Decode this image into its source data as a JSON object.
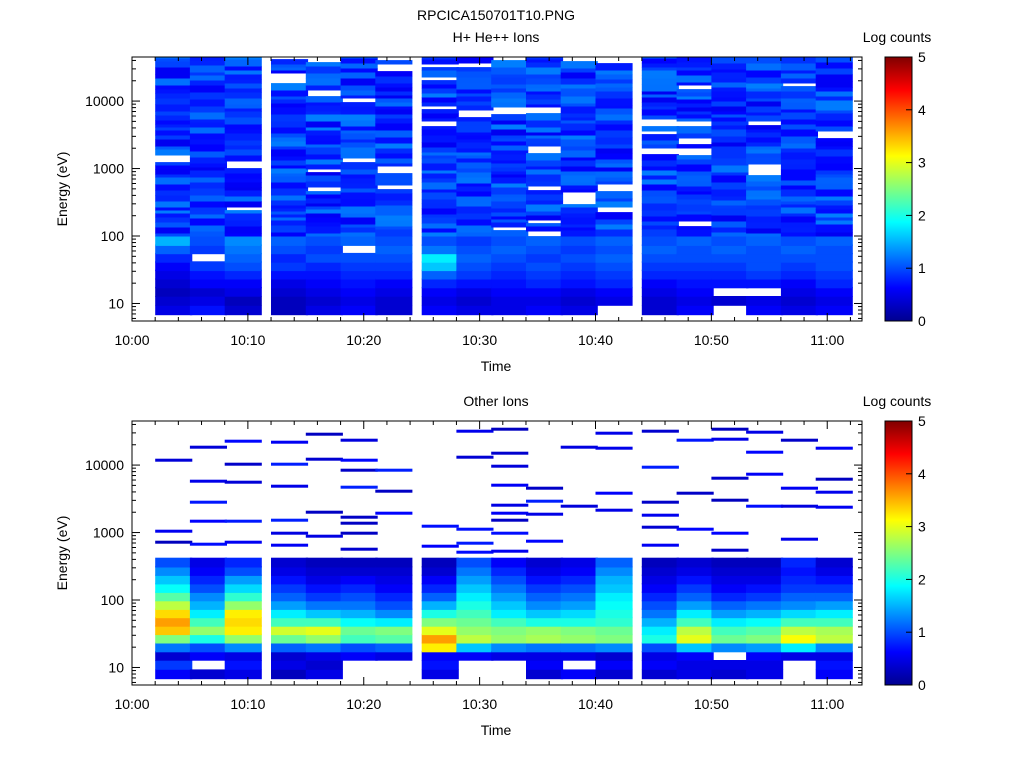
{
  "figure_title": "RPCICA150701T10.PNG",
  "chart_data": [
    {
      "type": "heatmap",
      "title": "H+ He++ Ions",
      "xlabel": "Time",
      "ylabel": "Energy (eV)",
      "y_scale": "log",
      "ylim": [
        5.5,
        45000
      ],
      "y_ticks": [
        10,
        100,
        1000,
        10000
      ],
      "y_tick_labels": [
        "10",
        "100",
        "1000",
        "10000"
      ],
      "x_tick_labels": [
        "10:00",
        "10:10",
        "10:20",
        "10:30",
        "10:40",
        "10:50",
        "11:00"
      ],
      "colorbar": {
        "label": "Log counts",
        "min": 0,
        "max": 5,
        "ticks": [
          "0",
          "1",
          "2",
          "3",
          "4",
          "5"
        ]
      },
      "time_bins_start": [
        "10:02",
        "10:05",
        "10:08",
        "10:12",
        "10:15",
        "10:18",
        "10:21",
        "10:25",
        "10:28",
        "10:31",
        "10:34",
        "10:37",
        "10:40",
        "10:44",
        "10:47",
        "10:50",
        "10:53",
        "10:56",
        "10:59"
      ],
      "energy_bins": [
        8,
        11,
        15,
        20,
        27,
        36,
        48,
        64,
        85
      ],
      "values_low_energy": [
        [
          0.5,
          0.4,
          0.3,
          0.4,
          0.5,
          0.6,
          0.8,
          1.1,
          1.5
        ],
        [
          0.7,
          0.5,
          0.4,
          0.6,
          0.7,
          0.9,
          null,
          0.9,
          1.0
        ],
        [
          0.4,
          0.3,
          0.5,
          0.6,
          0.8,
          1.0,
          1.1,
          1.2,
          1.3
        ],
        [
          0.3,
          0.3,
          0.4,
          0.5,
          0.7,
          0.9,
          0.8,
          1.0,
          1.1
        ],
        [
          0.5,
          0.4,
          0.5,
          0.6,
          0.7,
          0.8,
          1.0,
          0.9,
          1.0
        ],
        [
          0.6,
          0.5,
          0.6,
          0.7,
          0.8,
          0.9,
          1.0,
          null,
          1.1
        ],
        [
          0.4,
          0.4,
          0.5,
          0.6,
          0.8,
          0.9,
          1.0,
          1.1,
          1.0
        ],
        [
          0.6,
          0.5,
          0.6,
          0.8,
          1.1,
          1.6,
          1.8,
          1.2,
          1.0
        ],
        [
          0.5,
          0.4,
          0.5,
          0.7,
          0.9,
          1.0,
          1.1,
          1.0,
          0.9
        ],
        [
          0.5,
          0.5,
          0.6,
          0.7,
          0.8,
          0.9,
          1.0,
          1.1,
          1.0
        ],
        [
          0.6,
          0.5,
          0.6,
          0.8,
          0.9,
          1.0,
          0.9,
          1.0,
          1.1
        ],
        [
          0.5,
          0.4,
          0.5,
          0.7,
          0.8,
          0.9,
          1.0,
          0.9,
          1.0
        ],
        [
          null,
          0.5,
          0.6,
          0.8,
          0.9,
          1.0,
          1.1,
          1.0,
          1.1
        ],
        [
          0.4,
          0.4,
          0.5,
          0.6,
          0.8,
          0.9,
          1.0,
          1.1,
          1.0
        ],
        [
          0.6,
          0.5,
          0.6,
          0.7,
          0.8,
          0.9,
          1.0,
          1.0,
          1.1
        ],
        [
          null,
          0.4,
          null,
          0.7,
          0.8,
          0.9,
          1.0,
          1.1,
          1.0
        ],
        [
          0.6,
          0.5,
          null,
          0.7,
          0.9,
          1.0,
          1.0,
          1.0,
          1.1
        ],
        [
          0.5,
          0.4,
          0.5,
          0.6,
          0.8,
          0.9,
          1.0,
          1.1,
          1.0
        ],
        [
          0.6,
          0.5,
          0.6,
          0.8,
          0.9,
          1.0,
          1.0,
          1.0,
          1.1
        ]
      ],
      "higher_energy_level": 0.9
    },
    {
      "type": "heatmap",
      "title": "Other Ions",
      "xlabel": "Time",
      "ylabel": "Energy (eV)",
      "y_scale": "log",
      "ylim": [
        5.5,
        45000
      ],
      "y_ticks": [
        10,
        100,
        1000,
        10000
      ],
      "y_tick_labels": [
        "10",
        "100",
        "1000",
        "10000"
      ],
      "x_tick_labels": [
        "10:00",
        "10:10",
        "10:20",
        "10:30",
        "10:40",
        "10:50",
        "11:00"
      ],
      "colorbar": {
        "label": "Log counts",
        "min": 0,
        "max": 5,
        "ticks": [
          "0",
          "1",
          "2",
          "3",
          "4",
          "5"
        ]
      },
      "time_bins_start": [
        "10:02",
        "10:05",
        "10:08",
        "10:12",
        "10:15",
        "10:18",
        "10:21",
        "10:25",
        "10:28",
        "10:31",
        "10:34",
        "10:37",
        "10:40",
        "10:44",
        "10:47",
        "10:50",
        "10:53",
        "10:56",
        "10:59"
      ],
      "energy_bins": [
        8,
        11,
        15,
        20,
        27,
        36,
        48,
        64,
        85,
        114,
        152,
        203,
        271,
        362
      ],
      "values": [
        [
          0.6,
          0.9,
          0.4,
          1.2,
          2.5,
          3.4,
          3.6,
          3.3,
          2.8,
          2.3,
          1.9,
          1.6,
          1.3,
          1.0
        ],
        [
          0.4,
          null,
          0.6,
          1.0,
          2.0,
          2.6,
          2.2,
          1.8,
          1.5,
          1.3,
          1.0,
          0.8,
          0.6,
          0.5
        ],
        [
          0.5,
          0.7,
          0.5,
          1.3,
          2.6,
          3.2,
          3.3,
          3.2,
          2.6,
          2.1,
          1.7,
          1.4,
          1.0,
          0.8
        ],
        [
          0.3,
          0.5,
          0.4,
          1.1,
          2.4,
          2.9,
          2.2,
          1.8,
          1.4,
          1.1,
          0.9,
          0.7,
          0.5,
          0.4
        ],
        [
          0.5,
          0.4,
          0.5,
          1.2,
          2.6,
          3.0,
          2.2,
          1.6,
          1.2,
          0.9,
          0.7,
          0.5,
          0.4,
          0.3
        ],
        [
          null,
          null,
          0.6,
          1.0,
          2.2,
          2.4,
          1.9,
          1.5,
          1.2,
          1.0,
          0.8,
          0.6,
          0.4,
          0.3
        ],
        [
          null,
          null,
          0.5,
          1.1,
          2.3,
          2.5,
          1.8,
          1.3,
          1.0,
          0.8,
          0.6,
          0.5,
          0.4,
          0.3
        ],
        [
          0.5,
          0.7,
          0.6,
          3.2,
          3.6,
          3.0,
          2.5,
          2.0,
          1.5,
          1.1,
          0.8,
          0.6,
          0.4,
          0.3
        ],
        [
          null,
          null,
          0.6,
          1.6,
          2.8,
          2.6,
          2.4,
          2.2,
          2.0,
          1.8,
          1.6,
          1.4,
          1.2,
          1.0
        ],
        [
          null,
          null,
          0.5,
          1.3,
          2.6,
          2.5,
          2.2,
          1.8,
          1.6,
          1.4,
          1.2,
          1.0,
          0.8,
          0.6
        ],
        [
          0.4,
          0.6,
          0.5,
          1.2,
          2.7,
          2.6,
          2.0,
          1.6,
          1.3,
          1.1,
          0.9,
          0.7,
          0.5,
          0.4
        ],
        [
          0.6,
          null,
          0.5,
          1.2,
          2.6,
          2.5,
          2.0,
          1.7,
          1.4,
          1.2,
          1.0,
          0.8,
          0.6,
          0.5
        ],
        [
          0.4,
          0.6,
          0.4,
          1.3,
          2.5,
          2.4,
          2.1,
          2.0,
          1.9,
          1.8,
          1.6,
          1.5,
          1.3,
          1.1
        ],
        [
          0.4,
          0.6,
          0.5,
          1.0,
          2.0,
          1.8,
          1.5,
          1.2,
          1.0,
          0.8,
          0.6,
          0.5,
          0.4,
          0.3
        ],
        [
          0.5,
          0.5,
          0.6,
          1.6,
          3.0,
          2.8,
          2.2,
          1.8,
          1.4,
          1.1,
          0.9,
          0.7,
          0.5,
          0.4
        ],
        [
          0.4,
          0.5,
          null,
          1.3,
          2.4,
          2.2,
          1.8,
          1.4,
          1.1,
          0.8,
          0.6,
          0.5,
          0.4,
          0.3
        ],
        [
          0.5,
          0.5,
          0.6,
          1.4,
          2.5,
          2.3,
          1.9,
          1.5,
          1.2,
          0.9,
          0.7,
          0.5,
          0.4,
          0.3
        ],
        [
          null,
          null,
          0.5,
          1.8,
          3.1,
          2.8,
          2.2,
          1.7,
          1.3,
          1.1,
          0.9,
          0.8,
          0.7,
          0.8
        ],
        [
          0.6,
          0.7,
          0.5,
          1.3,
          2.8,
          2.7,
          2.2,
          1.8,
          1.4,
          1.1,
          0.9,
          0.7,
          0.5,
          0.4
        ]
      ]
    }
  ]
}
